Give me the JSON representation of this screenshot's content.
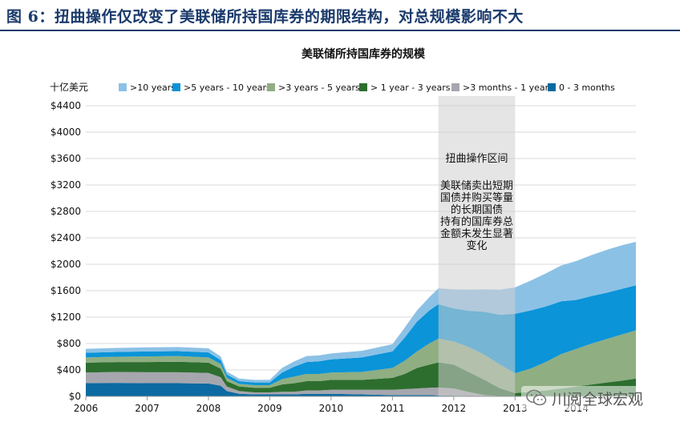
{
  "header": {
    "title": "图 6：扭曲操作仅改变了美联储所持国库券的期限结构，对总规模影响不大"
  },
  "watermark": {
    "text": "川阅全球宏观",
    "icon": "wechat-icon"
  },
  "chart_data": {
    "type": "area",
    "stacked": true,
    "title": "美联储所持国库券的规模",
    "ylabel": "十亿美元",
    "xlabel": "",
    "ylim": [
      0,
      4400
    ],
    "xlim": [
      2006,
      2014.97
    ],
    "yticks": [
      0,
      400,
      800,
      1200,
      1600,
      2000,
      2400,
      2800,
      3200,
      3600,
      4000,
      4400
    ],
    "ytick_labels": [
      "$0",
      "$400",
      "$800",
      "$1200",
      "$1600",
      "$2000",
      "$2400",
      "$2800",
      "$3200",
      "$3600",
      "$4000",
      "$4400"
    ],
    "xticks": [
      2006,
      2007,
      2008,
      2009,
      2010,
      2011,
      2012,
      2013,
      2014
    ],
    "xtick_labels": [
      "2006",
      "2007",
      "2008",
      "2009",
      "2010",
      "2011",
      "2012",
      "2013",
      "2014"
    ],
    "grid": true,
    "legend_position": "top",
    "colors": {
      "text": "#111111",
      "grid": "#d9d9d9",
      "axis": "#999999",
      "shade": "#cfcfcf"
    },
    "x": [
      2006.0,
      2006.5,
      2007.0,
      2007.5,
      2008.0,
      2008.2,
      2008.3,
      2008.5,
      2008.75,
      2009.0,
      2009.2,
      2009.4,
      2009.6,
      2009.8,
      2010.0,
      2010.5,
      2011.0,
      2011.2,
      2011.4,
      2011.6,
      2011.75,
      2012.0,
      2012.25,
      2012.5,
      2012.75,
      2013.0,
      2013.25,
      2013.5,
      2013.75,
      2014.0,
      2014.25,
      2014.5,
      2014.75,
      2014.97
    ],
    "series": [
      {
        "name": "0 - 3 months",
        "color": "#0b6aa2",
        "values": [
          200,
          205,
          200,
          200,
          195,
          160,
          80,
          40,
          30,
          30,
          30,
          30,
          40,
          40,
          40,
          30,
          20,
          20,
          20,
          20,
          15,
          10,
          5,
          0,
          0,
          0,
          0,
          0,
          0,
          0,
          0,
          0,
          0,
          0
        ]
      },
      {
        "name": ">3 months - 1 year",
        "color": "#a6a6ae",
        "values": [
          160,
          165,
          165,
          165,
          160,
          130,
          70,
          40,
          30,
          30,
          40,
          40,
          50,
          50,
          60,
          70,
          80,
          90,
          100,
          110,
          120,
          110,
          60,
          20,
          5,
          0,
          0,
          0,
          0,
          0,
          0,
          0,
          0,
          0
        ]
      },
      {
        "name": "> 1 year - 3 years",
        "color": "#2d6e2f",
        "values": [
          150,
          150,
          155,
          160,
          155,
          130,
          80,
          70,
          70,
          70,
          110,
          130,
          140,
          140,
          150,
          150,
          180,
          230,
          310,
          350,
          380,
          360,
          300,
          230,
          120,
          50,
          70,
          90,
          120,
          150,
          180,
          210,
          240,
          270
        ]
      },
      {
        "name": ">3 years - 5 years",
        "color": "#8fae82",
        "values": [
          80,
          80,
          85,
          85,
          80,
          70,
          50,
          40,
          40,
          40,
          80,
          100,
          110,
          110,
          110,
          120,
          150,
          200,
          250,
          320,
          360,
          350,
          380,
          380,
          360,
          300,
          350,
          430,
          520,
          570,
          620,
          660,
          700,
          730
        ]
      },
      {
        "name": ">5 years - 10 years",
        "color": "#0b94d8",
        "values": [
          70,
          72,
          75,
          75,
          75,
          60,
          50,
          40,
          40,
          40,
          100,
          150,
          180,
          190,
          200,
          220,
          250,
          350,
          450,
          500,
          520,
          500,
          550,
          650,
          750,
          900,
          880,
          840,
          800,
          740,
          720,
          700,
          690,
          680
        ]
      },
      {
        "name": ">10 years",
        "color": "#8cc1e6",
        "values": [
          60,
          62,
          62,
          62,
          62,
          55,
          45,
          40,
          40,
          40,
          70,
          80,
          90,
          90,
          90,
          100,
          110,
          150,
          170,
          200,
          240,
          290,
          320,
          340,
          380,
          400,
          450,
          500,
          540,
          590,
          620,
          650,
          660,
          660
        ]
      }
    ],
    "annotations": {
      "shaded_region": [
        2011.75,
        2013.0
      ],
      "label_title": "扭曲操作区间",
      "label_lines": [
        "美联储卖出短期",
        "国债并购买等量",
        "的长期国债",
        "持有的国库券总",
        "金额未发生显著",
        "变化"
      ]
    }
  }
}
